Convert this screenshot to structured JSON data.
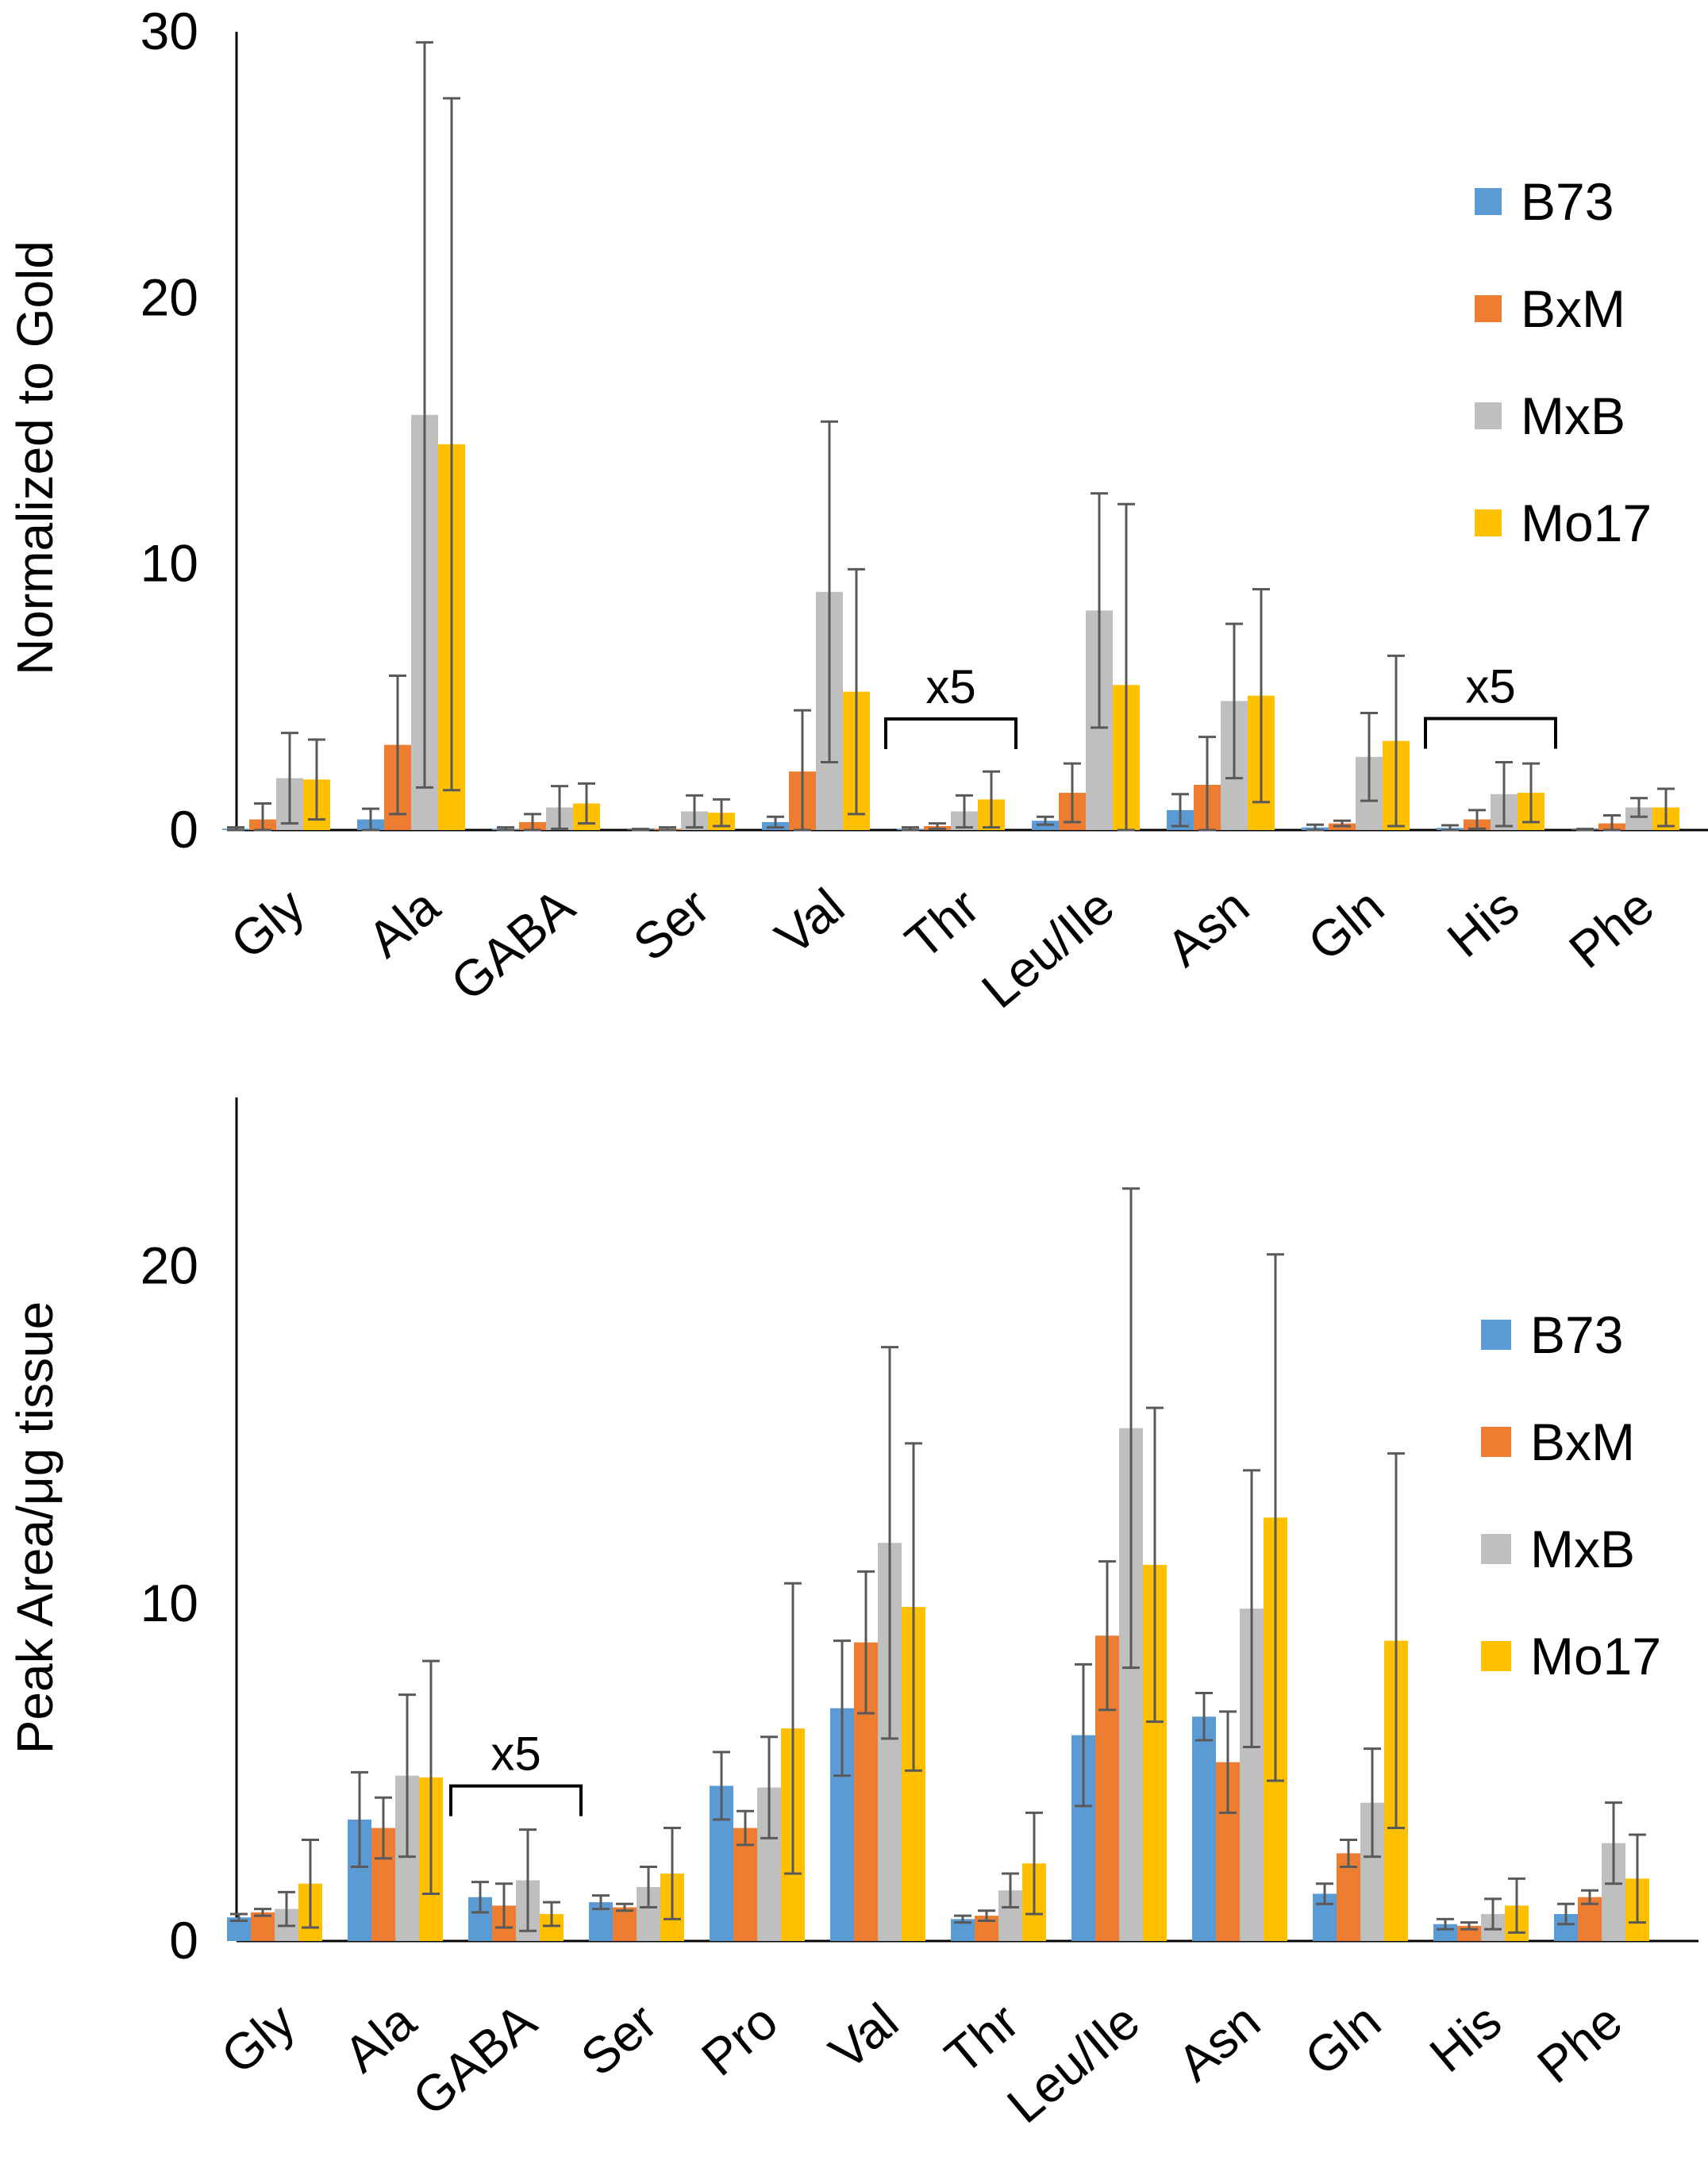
{
  "colors": {
    "B73": "#5b9bd5",
    "BxM": "#ed7d31",
    "MxB": "#bfbfbf",
    "Mo17": "#ffc000",
    "axis": "#000000",
    "errorbar": "#595959"
  },
  "chart_data": [
    {
      "type": "bar",
      "panel": "top",
      "title": "",
      "xlabel": "",
      "ylabel": "Normalized to Gold",
      "ylim": [
        0,
        30
      ],
      "yticks": [
        0,
        10,
        20,
        30
      ],
      "grid": false,
      "legend_position": "right",
      "categories": [
        "Gly",
        "Ala",
        "GABA",
        "Ser",
        "Val",
        "Thr",
        "Leu/Ile",
        "Asn",
        "Gln",
        "His",
        "Phe"
      ],
      "series": [
        {
          "name": "B73",
          "values": [
            0.05,
            0.4,
            0.05,
            0.02,
            0.3,
            0.05,
            0.35,
            0.75,
            0.1,
            0.08,
            0.02
          ],
          "errors": [
            0.05,
            0.4,
            0.05,
            0.02,
            0.2,
            0.05,
            0.15,
            0.6,
            0.1,
            0.1,
            0.02
          ]
        },
        {
          "name": "BxM",
          "values": [
            0.4,
            3.2,
            0.3,
            0.05,
            2.2,
            0.15,
            1.4,
            1.7,
            0.25,
            0.4,
            0.25
          ],
          "errors": [
            0.6,
            2.6,
            0.3,
            0.05,
            2.3,
            0.1,
            1.1,
            1.8,
            0.1,
            0.35,
            0.3
          ]
        },
        {
          "name": "MxB",
          "values": [
            1.95,
            15.6,
            0.85,
            0.7,
            8.95,
            0.7,
            8.25,
            4.85,
            2.75,
            1.35,
            0.85
          ],
          "errors": [
            1.7,
            14.0,
            0.8,
            0.6,
            6.4,
            0.6,
            4.4,
            2.9,
            1.65,
            1.2,
            0.35
          ]
        },
        {
          "name": "Mo17",
          "values": [
            1.9,
            14.5,
            1.0,
            0.65,
            5.2,
            1.15,
            5.45,
            5.05,
            3.35,
            1.4,
            0.85
          ],
          "errors": [
            1.5,
            13.0,
            0.75,
            0.5,
            4.6,
            1.05,
            6.8,
            4.0,
            3.2,
            1.1,
            0.7
          ]
        }
      ],
      "annotations": [
        {
          "text": "x5",
          "category": "Thr"
        },
        {
          "text": "x5",
          "category": "His"
        }
      ]
    },
    {
      "type": "bar",
      "panel": "bottom",
      "title": "",
      "xlabel": "",
      "ylabel": "Peak Area/μg tissue",
      "ylim": [
        0,
        25
      ],
      "yticks": [
        0,
        10,
        20
      ],
      "grid": false,
      "legend_position": "right",
      "categories": [
        "Gly",
        "Ala",
        "GABA",
        "Ser",
        "Pro",
        "Val",
        "Thr",
        "Leu/Ile",
        "Asn",
        "Gln",
        "His",
        "Phe"
      ],
      "series": [
        {
          "name": "B73",
          "values": [
            0.7,
            3.6,
            1.3,
            1.15,
            4.6,
            6.9,
            0.65,
            6.1,
            6.65,
            1.4,
            0.5,
            0.8
          ],
          "errors": [
            0.1,
            1.4,
            0.45,
            0.2,
            1.0,
            2.0,
            0.1,
            2.1,
            0.7,
            0.3,
            0.15,
            0.3
          ]
        },
        {
          "name": "BxM",
          "values": [
            0.85,
            3.35,
            1.05,
            1.0,
            3.35,
            8.85,
            0.75,
            9.05,
            5.3,
            2.6,
            0.45,
            1.3
          ],
          "errors": [
            0.1,
            0.9,
            0.65,
            0.1,
            0.5,
            2.1,
            0.15,
            2.2,
            1.5,
            0.4,
            0.1,
            0.2
          ]
        },
        {
          "name": "MxB",
          "values": [
            0.95,
            4.9,
            1.8,
            1.6,
            4.55,
            11.8,
            1.5,
            15.2,
            9.85,
            4.1,
            0.8,
            2.9
          ],
          "errors": [
            0.5,
            2.4,
            1.5,
            0.6,
            1.5,
            5.8,
            0.5,
            7.1,
            4.1,
            1.6,
            0.45,
            1.2
          ]
        },
        {
          "name": "Mo17",
          "values": [
            1.7,
            4.85,
            0.8,
            2.0,
            6.3,
            9.9,
            2.3,
            11.15,
            12.55,
            8.9,
            1.05,
            1.85
          ],
          "errors": [
            1.3,
            3.45,
            0.35,
            1.35,
            4.3,
            4.85,
            1.5,
            4.65,
            7.8,
            5.55,
            0.8,
            1.3
          ]
        }
      ],
      "annotations": [
        {
          "text": "x5",
          "category": "GABA"
        }
      ]
    }
  ]
}
